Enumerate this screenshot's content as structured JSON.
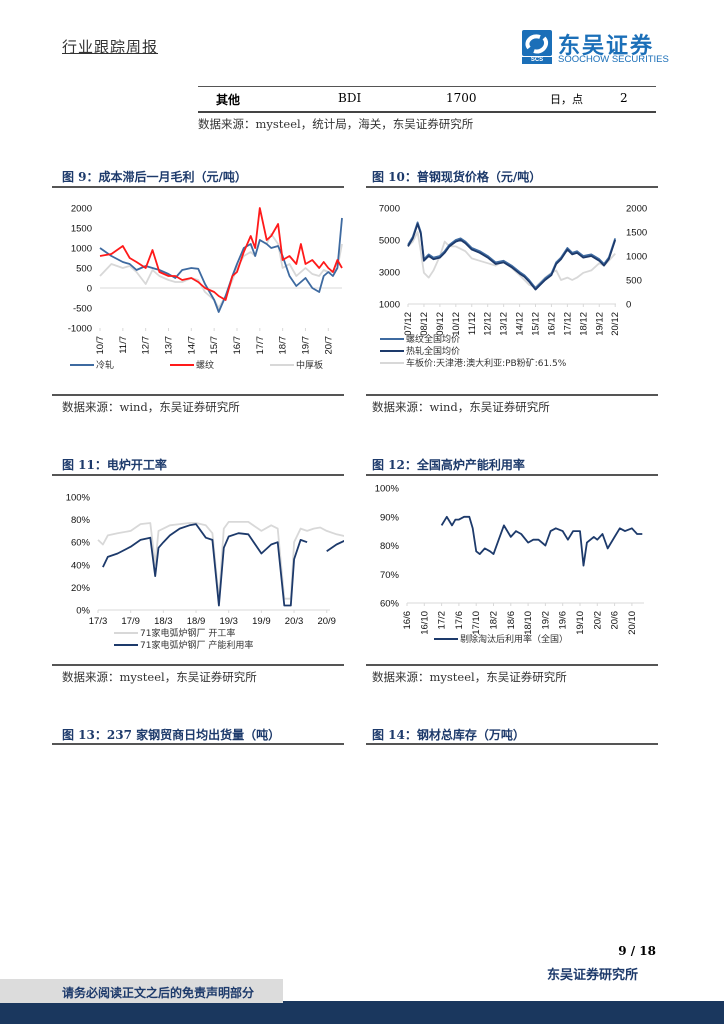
{
  "header": {
    "report_type": "行业跟踪周报",
    "logo_cn": "东吴证券",
    "logo_en": "SOOCHOW SECURITIES",
    "logo_badge": "SCS"
  },
  "top_table": {
    "row": {
      "category": "其他",
      "indicator": "BDI",
      "value": "1700",
      "frequency": "日，点",
      "count": "2"
    },
    "source": "数据来源：mysteel，统计局，海关，东吴证券研究所"
  },
  "colors": {
    "navy": "#1d3a6b",
    "steel_blue": "#3e6aa0",
    "red": "#ff1a1a",
    "light_gray": "#d8d8d8",
    "footer_band": "#1a375e"
  },
  "figures": {
    "fig9": {
      "title": "图 9：成本滞后一月毛利（元/吨）",
      "source": "数据来源：wind，东吴证券研究所"
    },
    "fig10": {
      "title": "图 10：普钢现货价格（元/吨）",
      "source": "数据来源：wind，东吴证券研究所"
    },
    "fig11": {
      "title": "图 11：电炉开工率",
      "source": "数据来源：mysteel，东吴证券研究所"
    },
    "fig12": {
      "title": "图 12：全国高炉产能利用率",
      "source": "数据来源：mysteel，东吴证券研究所"
    },
    "fig13": {
      "title": "图 13：237 家钢贸商日均出货量（吨）"
    },
    "fig14": {
      "title": "图 14：钢材总库存（万吨）"
    }
  },
  "chart_data": [
    {
      "id": "fig9",
      "type": "line",
      "title": "成本滞后一月毛利（元/吨）",
      "xlabel": "",
      "ylabel": "",
      "ylim": [
        -1000,
        2000
      ],
      "yticks": [
        "2000",
        "1500",
        "1000",
        "500",
        "0",
        "-500",
        "-1000"
      ],
      "categories": [
        "10/7",
        "11/7",
        "12/7",
        "13/7",
        "14/7",
        "15/7",
        "16/7",
        "17/7",
        "18/7",
        "19/7",
        "20/7"
      ],
      "x": [
        0,
        0.5,
        1,
        1.3,
        1.6,
        2,
        2.3,
        2.6,
        3,
        3.3,
        3.6,
        4,
        4.3,
        4.6,
        5,
        5.2,
        5.5,
        5.8,
        6,
        6.3,
        6.6,
        6.8,
        7,
        7.3,
        7.5,
        7.8,
        8,
        8.3,
        8.6,
        8.8,
        9,
        9.3,
        9.6,
        9.8,
        10,
        10.2,
        10.4,
        10.6
      ],
      "series": [
        {
          "name": "冷轧",
          "color": "#3e6aa0",
          "values": [
            1000,
            800,
            650,
            600,
            450,
            550,
            500,
            450,
            350,
            250,
            450,
            500,
            480,
            100,
            -300,
            -600,
            -200,
            300,
            600,
            1000,
            1100,
            800,
            1200,
            1100,
            1000,
            1050,
            800,
            300,
            50,
            150,
            250,
            0,
            -100,
            300,
            400,
            300,
            500,
            1750
          ]
        },
        {
          "name": "螺纹",
          "color": "#ff1a1a",
          "values": [
            800,
            850,
            1050,
            750,
            650,
            500,
            950,
            400,
            300,
            300,
            200,
            250,
            150,
            0,
            -100,
            -200,
            -300,
            300,
            400,
            900,
            1300,
            1000,
            2000,
            1200,
            1300,
            1600,
            700,
            800,
            600,
            1100,
            600,
            700,
            500,
            650,
            500,
            400,
            700,
            500
          ]
        },
        {
          "name": "中厚板",
          "color": "#d8d8d8",
          "values": [
            300,
            600,
            500,
            550,
            400,
            100,
            450,
            300,
            200,
            150,
            150,
            250,
            200,
            -100,
            -300,
            -500,
            -200,
            200,
            500,
            800,
            900,
            800,
            1200,
            1100,
            1350,
            1100,
            500,
            600,
            300,
            400,
            500,
            350,
            300,
            450,
            400,
            400,
            500,
            1100
          ]
        }
      ],
      "legend_position": "bottom"
    },
    {
      "id": "fig10",
      "type": "line",
      "title": "普钢现货价格（元/吨）",
      "ylim": [
        1000,
        7000
      ],
      "yticks": [
        "7000",
        "5000",
        "3000",
        "1000"
      ],
      "y2lim": [
        0,
        2000
      ],
      "y2ticks": [
        "2000",
        "1500",
        "1000",
        "500",
        "0"
      ],
      "categories": [
        "07/12",
        "08/12",
        "09/12",
        "10/12",
        "11/12",
        "12/12",
        "13/12",
        "14/12",
        "15/12",
        "16/12",
        "17/12",
        "18/12",
        "19/12",
        "20/12"
      ],
      "x": [
        0,
        0.3,
        0.6,
        0.8,
        1,
        1.3,
        1.6,
        2,
        2.3,
        2.6,
        3,
        3.3,
        3.6,
        4,
        4.5,
        5,
        5.5,
        6,
        6.5,
        7,
        7.3,
        7.6,
        8,
        8.3,
        8.6,
        9,
        9.3,
        9.6,
        10,
        10.3,
        10.6,
        11,
        11.5,
        12,
        12.3,
        12.6,
        13
      ],
      "series": [
        {
          "name": "螺纹全国均价",
          "color": "#3e6aa0",
          "axis": "left",
          "values": [
            4700,
            5200,
            6100,
            5500,
            3800,
            4100,
            3900,
            4000,
            4300,
            4700,
            5000,
            5100,
            4900,
            4500,
            4300,
            4000,
            3600,
            3700,
            3400,
            3000,
            2800,
            2500,
            2000,
            2300,
            2600,
            2900,
            3600,
            3900,
            4500,
            4200,
            4300,
            4000,
            4100,
            3800,
            3500,
            3900,
            5100
          ]
        },
        {
          "name": "热轧全国均价",
          "color": "#1d3a6b",
          "axis": "left",
          "values": [
            4600,
            5100,
            6000,
            5400,
            3700,
            4000,
            3800,
            3900,
            4200,
            4600,
            4900,
            5000,
            4800,
            4400,
            4200,
            3900,
            3500,
            3600,
            3300,
            2900,
            2700,
            2400,
            1900,
            2200,
            2500,
            2800,
            3500,
            3800,
            4400,
            4100,
            4200,
            3900,
            4000,
            3700,
            3400,
            3800,
            5000
          ]
        },
        {
          "name": "车板价:天津港:澳大利亚:PB粉矿:61.5%",
          "color": "#d8d8d8",
          "axis": "right",
          "values": [
            1200,
            1300,
            1500,
            1100,
            650,
            550,
            700,
            1000,
            1300,
            1200,
            1200,
            1150,
            1100,
            950,
            900,
            850,
            800,
            900,
            750,
            600,
            500,
            400,
            350,
            450,
            550,
            650,
            700,
            500,
            550,
            500,
            550,
            650,
            700,
            850,
            800,
            900,
            1050
          ]
        }
      ],
      "legend_position": "bottom"
    },
    {
      "id": "fig11",
      "type": "line",
      "title": "电炉开工率",
      "ylim": [
        0,
        100
      ],
      "yticks": [
        "100%",
        "80%",
        "60%",
        "40%",
        "20%",
        "0%"
      ],
      "categories": [
        "17/3",
        "17/9",
        "18/3",
        "18/9",
        "19/3",
        "19/9",
        "20/3",
        "20/9"
      ],
      "x": [
        0,
        0.15,
        0.3,
        0.6,
        1,
        1.3,
        1.6,
        1.75,
        1.85,
        2,
        2.2,
        2.5,
        2.8,
        3,
        3.3,
        3.5,
        3.7,
        3.85,
        4,
        4.3,
        4.6,
        5,
        5.3,
        5.5,
        5.7,
        5.9,
        6,
        6.2,
        6.4,
        6.6,
        6.8,
        7,
        7.3,
        7.6,
        7.8,
        7.95
      ],
      "series": [
        {
          "name": "71家电弧炉钢厂 开工率",
          "color": "#d8d8d8",
          "values": [
            62,
            58,
            66,
            68,
            70,
            76,
            77,
            40,
            70,
            72,
            75,
            76,
            77,
            77,
            75,
            68,
            10,
            72,
            78,
            78,
            78,
            70,
            75,
            72,
            10,
            10,
            60,
            72,
            70,
            72,
            73,
            70,
            67,
            65,
            62,
            15
          ]
        },
        {
          "name": "71家电弧炉钢厂 产能利用率",
          "color": "#1d3a6b",
          "values": [
            null,
            38,
            47,
            50,
            56,
            62,
            64,
            30,
            55,
            60,
            66,
            72,
            75,
            76,
            64,
            62,
            4,
            55,
            65,
            68,
            67,
            50,
            58,
            60,
            4,
            4,
            45,
            62,
            60,
            null,
            null,
            52,
            58,
            62,
            63,
            11
          ]
        }
      ],
      "legend_position": "bottom"
    },
    {
      "id": "fig12",
      "type": "line",
      "title": "全国高炉产能利用率",
      "ylim": [
        60,
        100
      ],
      "yticks": [
        "100%",
        "90%",
        "80%",
        "70%",
        "60%"
      ],
      "categories": [
        "16/6",
        "16/10",
        "17/2",
        "17/6",
        "17/10",
        "18/2",
        "18/6",
        "18/10",
        "19/2",
        "19/6",
        "19/10",
        "20/2",
        "20/6",
        "20/10"
      ],
      "x": [
        2,
        2.3,
        2.6,
        2.8,
        3,
        3.3,
        3.6,
        3.8,
        4,
        4.2,
        4.5,
        4.8,
        5,
        5.3,
        5.6,
        6,
        6.3,
        6.6,
        7,
        7.3,
        7.6,
        8,
        8.3,
        8.6,
        9,
        9.3,
        9.6,
        10,
        10.2,
        10.4,
        10.8,
        11,
        11.3,
        11.6,
        12,
        12.3,
        12.6,
        13,
        13.3,
        13.6
      ],
      "series": [
        {
          "name": "剔除淘汰后利用率（全国）",
          "color": "#1d3a6b",
          "values": [
            87,
            90,
            87,
            89,
            89,
            90,
            90,
            86,
            78,
            77,
            79,
            78,
            77,
            82,
            87,
            83,
            85,
            84,
            81,
            82,
            82,
            80,
            85,
            86,
            85,
            82,
            85,
            85,
            73,
            81,
            83,
            82,
            84,
            79,
            83,
            86,
            85,
            86,
            84,
            84
          ]
        }
      ],
      "legend_position": "bottom"
    }
  ],
  "footer": {
    "page": "9 / 18",
    "institute": "东吴证券研究所",
    "disclaimer": "请务必阅读正文之后的免责声明部分"
  }
}
